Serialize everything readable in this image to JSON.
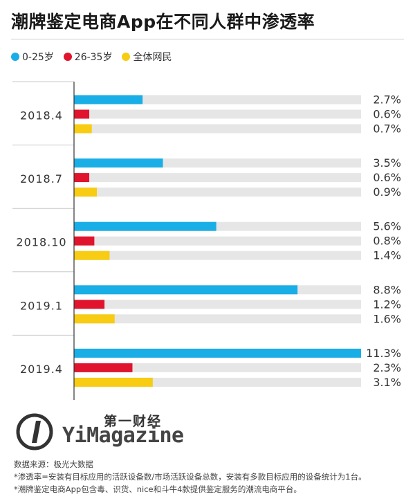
{
  "title": "潮牌鉴定电商App在不同人群中渗透率",
  "chart_data": {
    "type": "bar",
    "orientation": "horizontal",
    "categories": [
      "2018.4",
      "2018.7",
      "2018.10",
      "2019.1",
      "2019.4"
    ],
    "series": [
      {
        "name": "0-25岁",
        "color": "#1aaee6",
        "values": [
          2.7,
          3.5,
          5.6,
          8.8,
          11.3
        ]
      },
      {
        "name": "26-35岁",
        "color": "#e0152d",
        "values": [
          0.6,
          0.6,
          0.8,
          1.2,
          2.3
        ]
      },
      {
        "name": "全体网民",
        "color": "#f7cc12",
        "values": [
          0.7,
          0.9,
          1.4,
          1.6,
          3.1
        ]
      }
    ],
    "value_labels": [
      [
        "2.7%",
        "0.6%",
        "0.7%"
      ],
      [
        "3.5%",
        "0.6%",
        "0.9%"
      ],
      [
        "5.6%",
        "0.8%",
        "1.4%"
      ],
      [
        "8.8%",
        "1.2%",
        "1.6%"
      ],
      [
        "11.3%",
        "2.3%",
        "3.1%"
      ]
    ],
    "xlim": [
      0,
      11.3
    ],
    "legend_position": "top-left",
    "track_color": "#e6e6e6"
  },
  "brand": {
    "cn": "第一财经",
    "en": "YiMagazine"
  },
  "notes": [
    "数据来源：极光大数据",
    "*渗透率=安装有目标应用的活跃设备数/市场活跃设备总数，安装有多款目标应用的设备统计为1台。",
    "*潮牌鉴定电商App包含毒、识货、nice和斗牛4款提供鉴定服务的潮流电商平台。"
  ]
}
